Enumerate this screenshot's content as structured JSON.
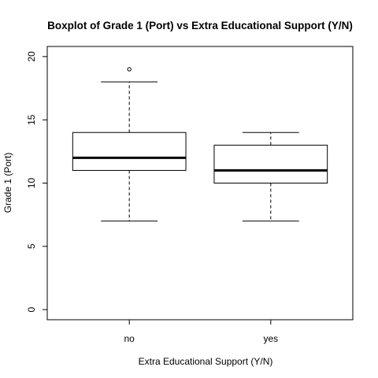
{
  "chart_data": {
    "type": "boxplot",
    "title": "Boxplot of Grade 1 (Port)  vs  Extra Educational Support (Y/N)",
    "xlabel": "Extra Educational Support (Y/N)",
    "ylabel": "Grade 1 (Port)",
    "categories": [
      "no",
      "yes"
    ],
    "yticks": [
      "0",
      "5",
      "10",
      "15",
      "20"
    ],
    "ylim": [
      -0.8,
      20.8
    ],
    "grid": false,
    "legend": "none",
    "boxes": [
      {
        "category": "no",
        "whisker_low": 7,
        "q1": 11,
        "median": 12,
        "q3": 14,
        "whisker_high": 18,
        "outliers": [
          19
        ]
      },
      {
        "category": "yes",
        "whisker_low": 7,
        "q1": 10,
        "median": 11,
        "q3": 13,
        "whisker_high": 14,
        "outliers": []
      }
    ],
    "colors": {
      "box_fill": "#ffffff",
      "stroke": "#000000"
    }
  }
}
